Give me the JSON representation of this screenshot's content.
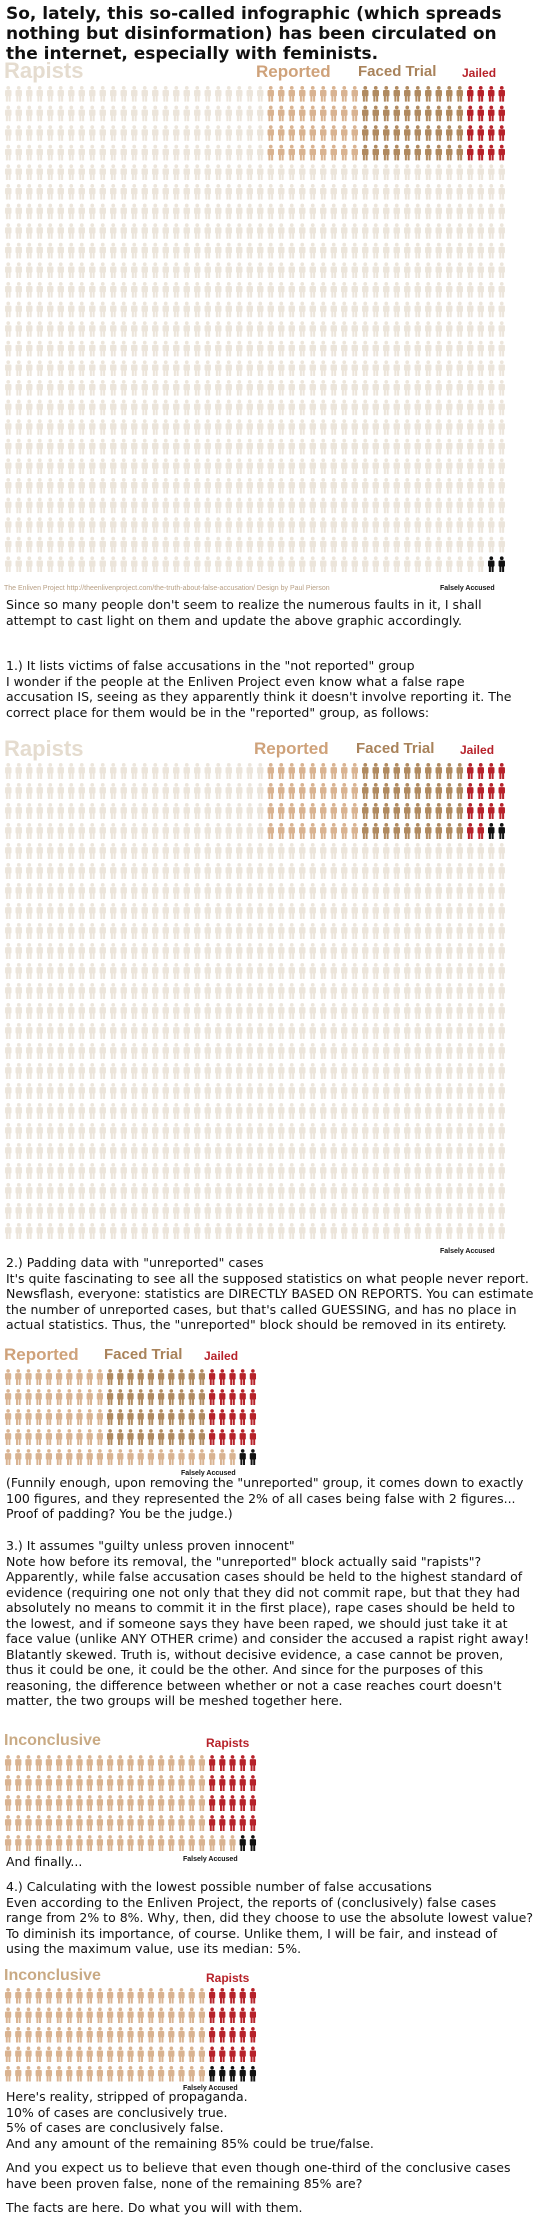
{
  "title": "So, lately, this so-called infographic (which spreads nothing but disinformation) has been circulated on the internet, especially with feminists.",
  "graphic1": {
    "labels": {
      "rapists": "Rapists",
      "reported": "Reported",
      "faced_trial": "Faced Trial",
      "jailed": "Jailed"
    },
    "credit": "The Enliven Project http://theenlivenproject.com/the-truth-about-false-accusation/ Design by Paul Pierson",
    "falsely_accused": "Falsely Accused",
    "colors": {
      "unreported": "#ece5db",
      "reported": "#d9b391",
      "faced_trial": "#b08a60",
      "jailed": "#b7222a",
      "false": "#111111"
    }
  },
  "paragraph1": "Since so many people don't seem to realize the numerous faults in it, I shall attempt to cast light on them and update the above graphic accordingly.",
  "point1": "1.) It lists victims of false accusations in the \"not reported\" group\nI wonder if the people at the Enliven Project even know what a false rape accusation IS, seeing as they apparently think it doesn't involve reporting it. The correct place for them would be in the \"reported\" group, as follows:",
  "graphic2": {
    "labels": {
      "rapists": "Rapists",
      "reported": "Reported",
      "faced_trial": "Faced Trial",
      "jailed": "Jailed"
    },
    "falsely_accused": "Falsely Accused"
  },
  "point2": "2.) Padding data with \"unreported\" cases\nIt's quite fascinating to see all the supposed statistics on what people never report. Newsflash, everyone: statistics are DIRECTLY BASED ON REPORTS. You can estimate the number of unreported cases, but that's called GUESSING, and has no place in actual statistics. Thus, the \"unreported\" block should be removed in its entirety.",
  "graphic3": {
    "labels": {
      "reported": "Reported",
      "faced_trial": "Faced Trial",
      "jailed": "Jailed"
    },
    "falsely_accused": "Falsely Accused"
  },
  "paragraph3": "(Funnily enough, upon removing the \"unreported\" group, it comes down to exactly 100 figures, and they represented the 2% of all cases being false with 2 figures... Proof of padding? You be the judge.)",
  "point3": "3.) It assumes \"guilty unless proven innocent\"\nNote how before its removal, the \"unreported\" block actually said \"rapists\"? Apparently, while false accusation cases should be held to the highest standard of evidence (requiring one not only that they did not commit rape, but that they had absolutely no means to commit it in the first place), rape cases should be held to the lowest, and if someone says they have been raped, we should just take it at face value (unlike ANY OTHER crime) and consider the accused a rapist right away!\nBlatantly skewed. Truth is, without decisive evidence, a case cannot be proven, thus it could be one, it could be the other. And since for the purposes of this reasoning, the difference between whether or not a case reaches court doesn't matter, the two groups will be meshed together here.",
  "graphic4": {
    "labels": {
      "inconclusive": "Inconclusive",
      "rapists": "Rapists"
    },
    "falsely_accused": "Falsely Accused"
  },
  "and_finally": "And finally...",
  "point4": "4.) Calculating with the lowest possible number of false accusations\nEven according to the Enliven Project, the reports of (conclusively) false cases range from 2% to 8%. Why, then, did they choose to use the absolute lowest value? To diminish its importance, of course. Unlike them, I will be fair, and instead of using the maximum value, use its median: 5%.",
  "graphic5": {
    "labels": {
      "inconclusive": "Inconclusive",
      "rapists": "Rapists"
    },
    "falsely_accused": "Falsely Accused"
  },
  "conclusion": "Here's reality, stripped of propaganda.\n10% of cases are conclusively true.\n5% of cases are conclusively false.\nAnd any amount of the remaining 85% could be true/false.",
  "question": "And you expect us to believe that even though one-third of the conclusive cases have been proven false, none of the remaining 85% are?",
  "final": "The facts are here. Do what you will with them."
}
